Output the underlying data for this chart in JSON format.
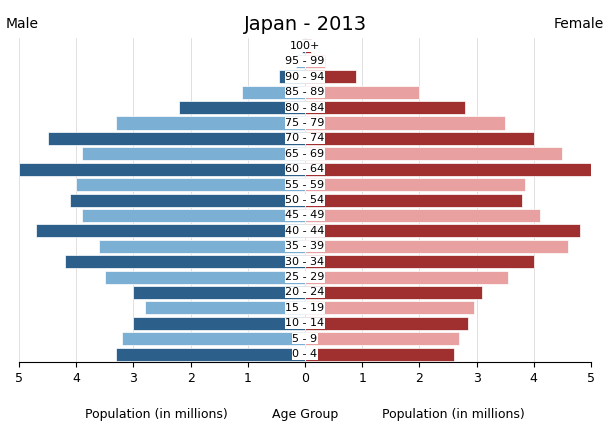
{
  "title": "Japan - 2013",
  "age_groups": [
    "100+",
    "95 - 99",
    "90 - 94",
    "85 - 89",
    "80 - 84",
    "75 - 79",
    "70 - 74",
    "65 - 69",
    "60 - 64",
    "55 - 59",
    "50 - 54",
    "45 - 49",
    "40 - 44",
    "35 - 39",
    "30 - 34",
    "25 - 29",
    "20 - 24",
    "15 - 19",
    "10 - 14",
    "5 - 9",
    "0 - 4"
  ],
  "male_values": [
    0.05,
    0.15,
    0.45,
    1.1,
    2.2,
    3.3,
    4.5,
    3.9,
    5.0,
    4.0,
    4.1,
    3.9,
    4.7,
    3.6,
    4.2,
    3.5,
    3.0,
    2.8,
    3.0,
    3.2,
    3.3
  ],
  "female_values": [
    0.1,
    0.35,
    0.9,
    2.0,
    2.8,
    3.5,
    4.0,
    4.5,
    5.0,
    3.85,
    3.8,
    4.1,
    4.8,
    4.6,
    4.0,
    3.55,
    3.1,
    2.95,
    2.85,
    2.7,
    2.6
  ],
  "male_dark_color": "#2c5f8a",
  "male_light_color": "#7bafd4",
  "female_dark_color": "#a03030",
  "female_light_color": "#e8a0a0",
  "xlabel_left": "Population (in millions)",
  "xlabel_center": "Age Group",
  "xlabel_right": "Population (in millions)",
  "label_male": "Male",
  "label_female": "Female",
  "xlim": 5.0,
  "background_color": "#ffffff",
  "title_fontsize": 14,
  "axis_fontsize": 9,
  "label_fontsize": 10,
  "tick_fontsize": 8,
  "bar_label_fontsize": 7
}
